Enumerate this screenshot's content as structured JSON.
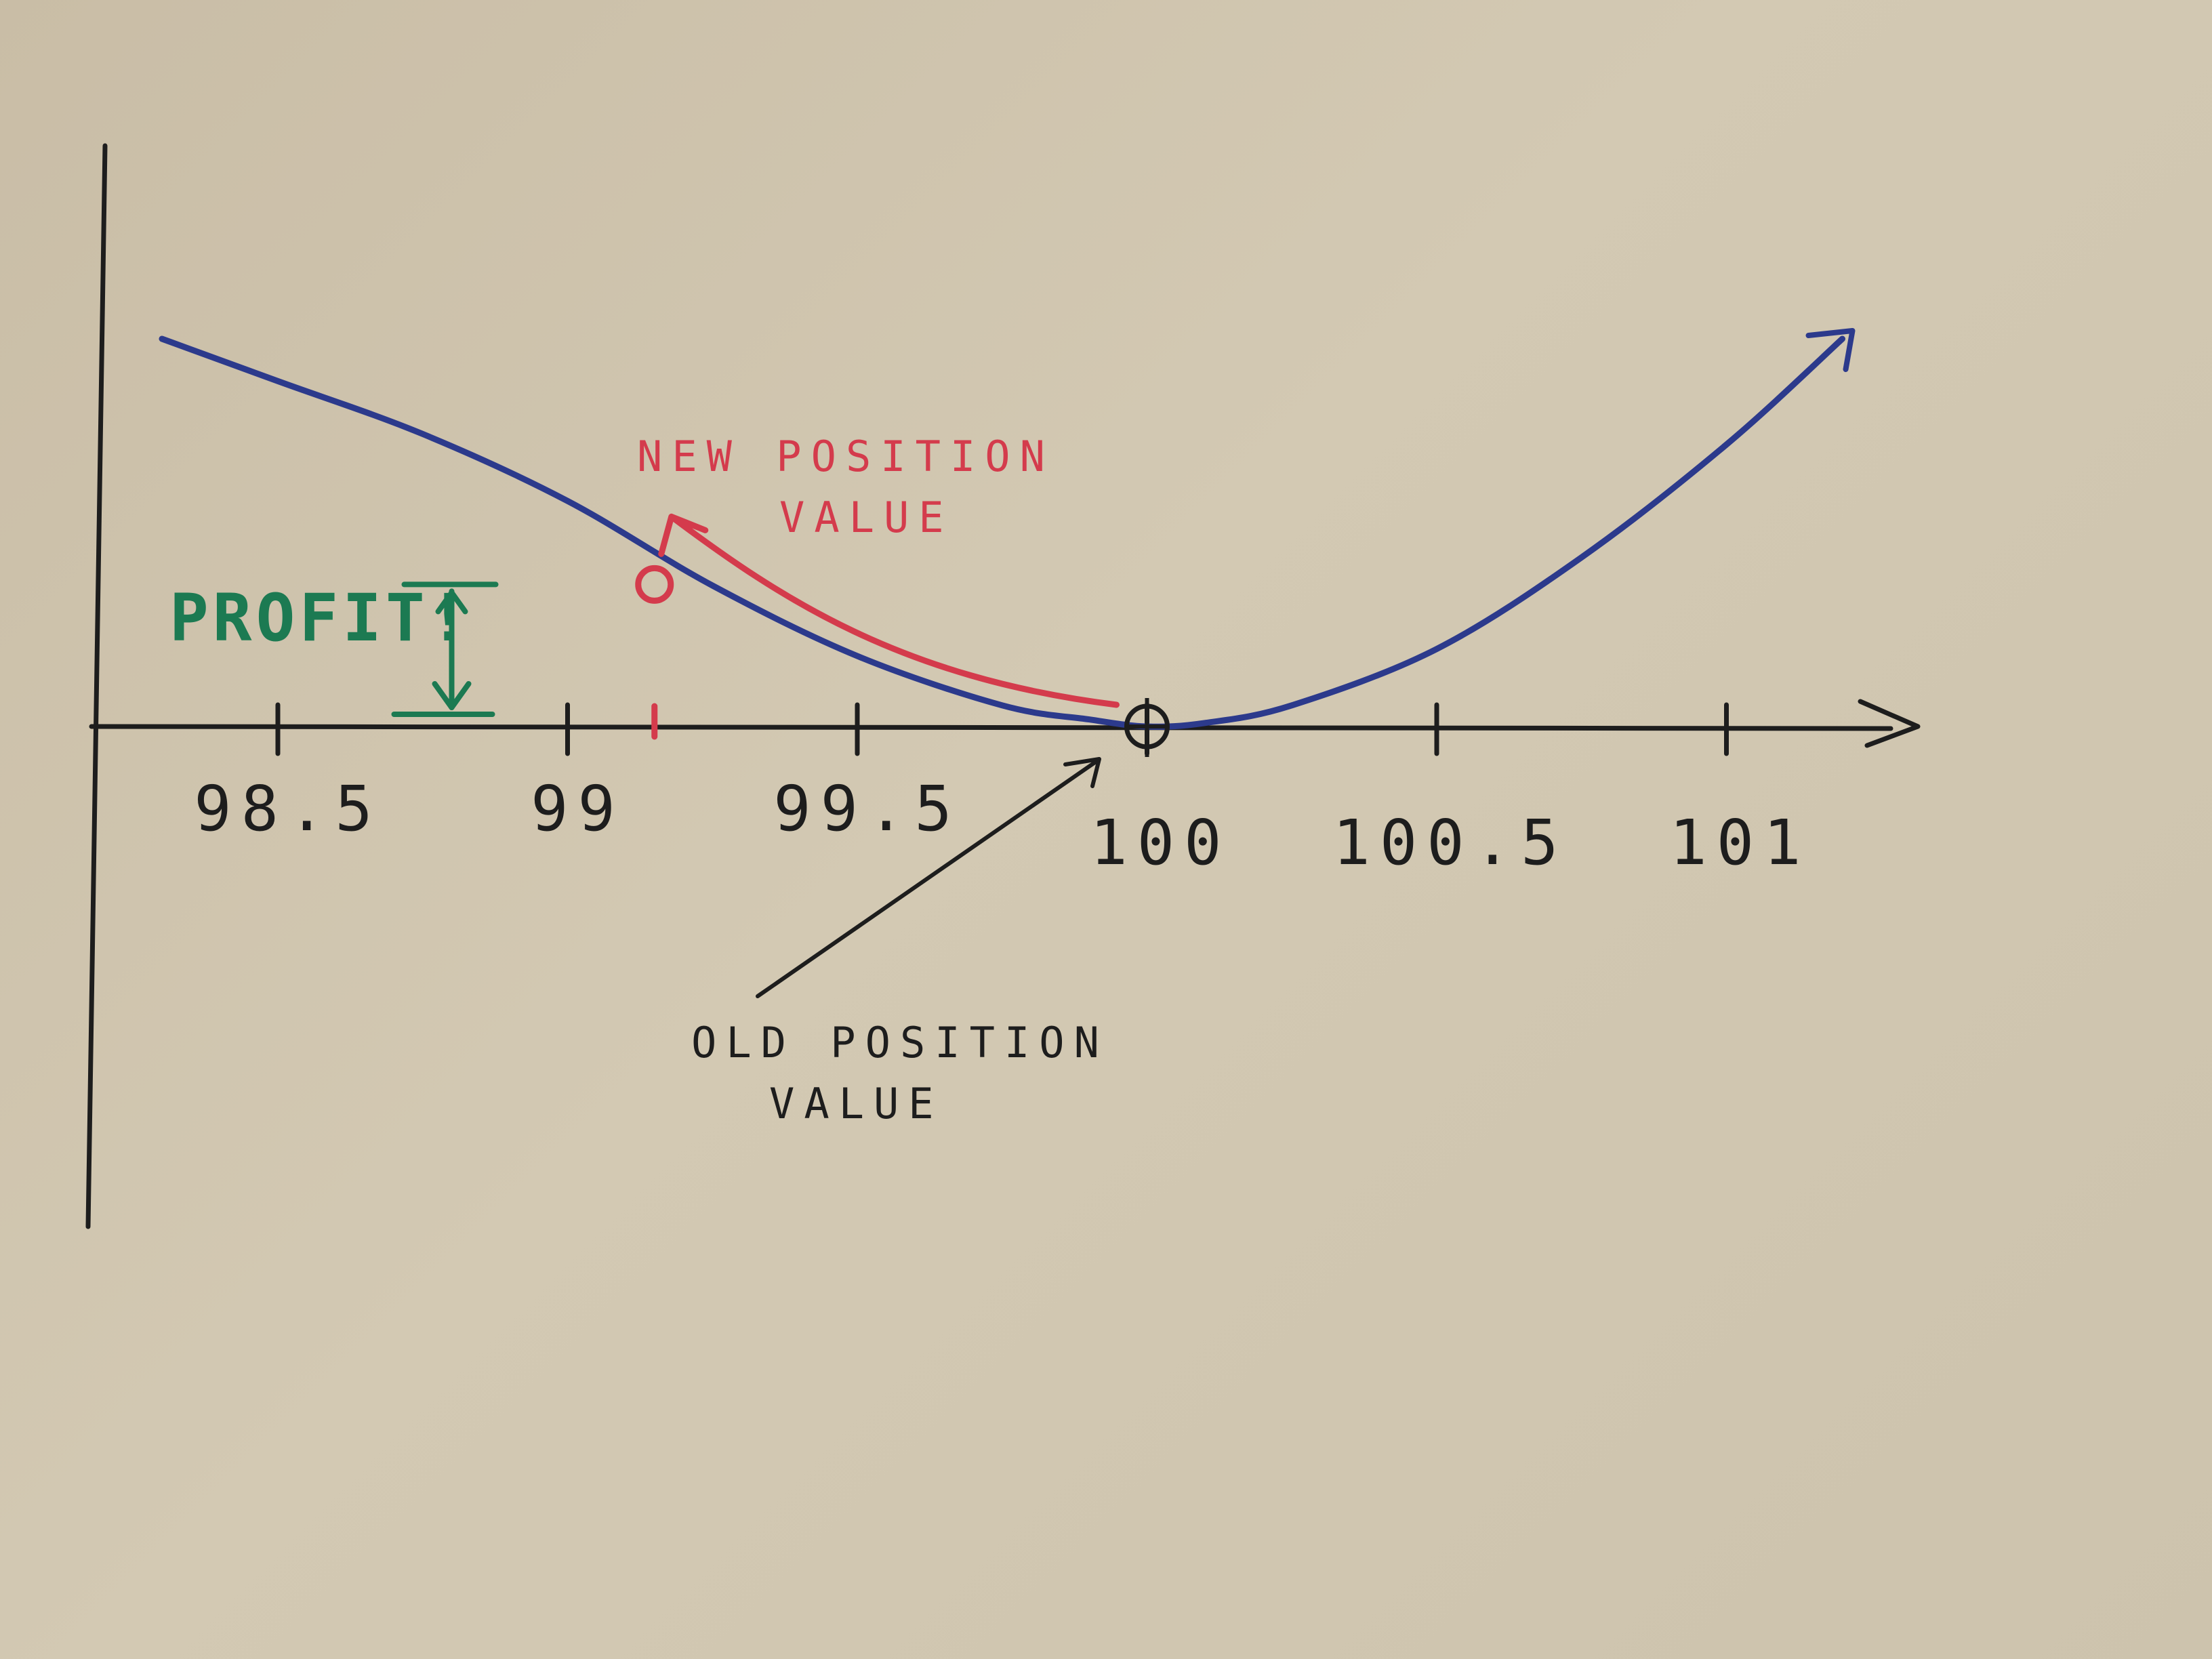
{
  "chart_data": {
    "type": "line",
    "title": "",
    "xlabel": "",
    "ylabel": "",
    "x_ticks": [
      "98.5",
      "99",
      "99.5",
      "100",
      "100.5",
      "101"
    ],
    "xlim": [
      98.2,
      101.25
    ],
    "ylim": [
      0,
      1.3
    ],
    "grid": false,
    "series": [
      {
        "x": [
          98.3,
          98.5,
          98.75,
          99.0,
          99.25,
          99.5,
          99.75,
          99.9,
          100.0,
          100.1,
          100.25,
          100.5,
          100.75,
          101.0,
          101.2
        ],
        "y": [
          1.1,
          0.98,
          0.83,
          0.64,
          0.4,
          0.2,
          0.06,
          0.02,
          0.0,
          0.01,
          0.06,
          0.22,
          0.48,
          0.8,
          1.1
        ],
        "color": "#2c3a8c"
      }
    ],
    "points": {
      "old_position": {
        "x": 100.0,
        "y": 0.0
      },
      "new_position": {
        "x": 99.15,
        "y": 0.48
      }
    },
    "profit_bar": {
      "x": 98.8,
      "y_from": 0.0,
      "y_to": 0.48
    },
    "annotations": {
      "new_position_value": [
        "NEW POSITION",
        "VALUE"
      ],
      "old_position_value": [
        "OLD POSITION",
        "VALUE"
      ],
      "profit": "PROFIT!"
    },
    "colors": {
      "axis": "#1d1d1d",
      "curve": "#2c3a8c",
      "new_position": "#d43b4c",
      "profit": "#1c7a52"
    }
  }
}
